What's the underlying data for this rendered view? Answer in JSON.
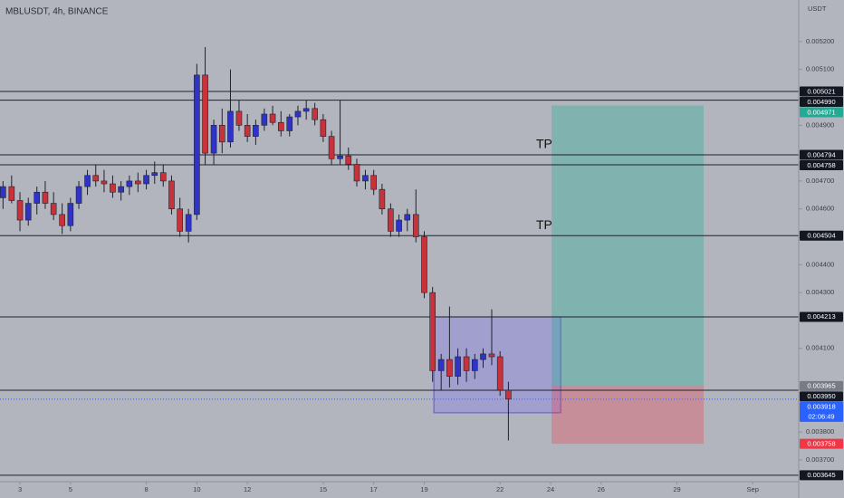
{
  "chart_data": {
    "type": "candlestick",
    "title": "MBLUSDT, 4h, BINANCE",
    "y_axis_label": "USDT",
    "up_color": "#2f33c9",
    "down_color": "#c8323a",
    "x": [
      2.33,
      2.67,
      3,
      3.33,
      3.67,
      4,
      4.33,
      4.67,
      5,
      5.33,
      5.67,
      6,
      6.33,
      6.67,
      7,
      7.33,
      7.67,
      8,
      8.33,
      8.67,
      9,
      9.33,
      9.67,
      10,
      10.33,
      10.67,
      11,
      11.33,
      11.67,
      12,
      12.33,
      12.67,
      13,
      13.33,
      13.67,
      14,
      14.33,
      14.67,
      15,
      15.33,
      15.67,
      16,
      16.33,
      16.67,
      17,
      17.33,
      17.67,
      18,
      18.33,
      18.67,
      19,
      19.33,
      19.67,
      20,
      20.33,
      20.67,
      21,
      21.33,
      21.67,
      22,
      22.33
    ],
    "open": [
      0.00464,
      0.00468,
      0.00463,
      0.00456,
      0.00462,
      0.00466,
      0.00462,
      0.00458,
      0.00454,
      0.00462,
      0.00468,
      0.00472,
      0.0047,
      0.00469,
      0.00466,
      0.00468,
      0.0047,
      0.00469,
      0.00472,
      0.00473,
      0.0047,
      0.0046,
      0.00452,
      0.00458,
      0.00508,
      0.0048,
      0.0049,
      0.00484,
      0.00495,
      0.0049,
      0.00486,
      0.0049,
      0.00494,
      0.00491,
      0.00488,
      0.00493,
      0.00495,
      0.00496,
      0.00492,
      0.00486,
      0.00478,
      0.00479,
      0.00476,
      0.0047,
      0.00472,
      0.00467,
      0.0046,
      0.00452,
      0.00456,
      0.00458,
      0.0045,
      0.0043,
      0.00402,
      0.00406,
      0.004,
      0.00407,
      0.00402,
      0.00406,
      0.00408,
      0.00407,
      0.00395
    ],
    "high": [
      0.0047,
      0.00472,
      0.00466,
      0.00464,
      0.00468,
      0.0047,
      0.00466,
      0.00462,
      0.00464,
      0.0047,
      0.00474,
      0.00476,
      0.00474,
      0.00472,
      0.0047,
      0.00472,
      0.00473,
      0.00474,
      0.00477,
      0.00476,
      0.00472,
      0.00464,
      0.0046,
      0.00512,
      0.00518,
      0.00492,
      0.00496,
      0.0051,
      0.00499,
      0.00494,
      0.00492,
      0.00496,
      0.00497,
      0.00495,
      0.00494,
      0.00497,
      0.00499,
      0.00498,
      0.00494,
      0.00488,
      0.00499,
      0.00482,
      0.00478,
      0.00474,
      0.00474,
      0.00469,
      0.00462,
      0.00458,
      0.0046,
      0.00467,
      0.00452,
      0.00432,
      0.00408,
      0.00425,
      0.0041,
      0.0041,
      0.00408,
      0.0041,
      0.00424,
      0.00409,
      0.00398
    ],
    "low": [
      0.0046,
      0.00462,
      0.00452,
      0.00454,
      0.00458,
      0.0046,
      0.00456,
      0.00451,
      0.00452,
      0.0046,
      0.00465,
      0.00468,
      0.00466,
      0.00464,
      0.00463,
      0.00465,
      0.00466,
      0.00467,
      0.00469,
      0.00468,
      0.00458,
      0.0045,
      0.00448,
      0.00456,
      0.00476,
      0.00476,
      0.0048,
      0.00482,
      0.00488,
      0.00484,
      0.00483,
      0.00488,
      0.0049,
      0.00486,
      0.00486,
      0.0049,
      0.00492,
      0.0049,
      0.00484,
      0.00476,
      0.00476,
      0.00474,
      0.00468,
      0.00467,
      0.00465,
      0.00458,
      0.0045,
      0.0045,
      0.00452,
      0.00448,
      0.00428,
      0.00398,
      0.00395,
      0.00396,
      0.00397,
      0.00398,
      0.00399,
      0.00403,
      0.00404,
      0.00393,
      0.00377
    ],
    "close": [
      0.00468,
      0.00463,
      0.00456,
      0.00462,
      0.00466,
      0.00462,
      0.00458,
      0.00454,
      0.00462,
      0.00468,
      0.00472,
      0.0047,
      0.00469,
      0.00466,
      0.00468,
      0.0047,
      0.00469,
      0.00472,
      0.00473,
      0.0047,
      0.0046,
      0.00452,
      0.00458,
      0.00508,
      0.0048,
      0.0049,
      0.00484,
      0.00495,
      0.0049,
      0.00486,
      0.0049,
      0.00494,
      0.00491,
      0.00488,
      0.00493,
      0.00495,
      0.00496,
      0.00492,
      0.00486,
      0.00478,
      0.00479,
      0.00476,
      0.0047,
      0.00472,
      0.00467,
      0.0046,
      0.00452,
      0.00456,
      0.00458,
      0.0045,
      0.0043,
      0.00402,
      0.00406,
      0.004,
      0.00407,
      0.00402,
      0.00406,
      0.00408,
      0.00407,
      0.00395,
      0.003918
    ],
    "xlim": [
      2.21,
      33.82
    ],
    "ylim": [
      0.003622,
      0.005349
    ],
    "xticks": [
      3,
      5,
      8,
      10,
      12,
      15,
      17,
      19,
      22,
      24,
      26,
      29,
      {
        "value": 32,
        "label": "Sep"
      }
    ],
    "yticks": [
      {
        "value": 0.0052,
        "label": "0.005200"
      },
      {
        "value": 0.0051,
        "label": "0.005100"
      },
      {
        "value": 0.0049,
        "label": "0.004900"
      },
      {
        "value": 0.0047,
        "label": "0.004700"
      },
      {
        "value": 0.0046,
        "label": "0.004600"
      },
      {
        "value": 0.0044,
        "label": "0.004400"
      },
      {
        "value": 0.0043,
        "label": "0.004300"
      },
      {
        "value": 0.0041,
        "label": "0.004100"
      },
      {
        "value": 0.0038,
        "label": "0.003800"
      },
      {
        "value": 0.0037,
        "label": "0.003700"
      }
    ],
    "levels": [
      0.005021,
      {
        "value": 0.00499,
        "label": "0.004990"
      },
      0.004794,
      0.004758,
      0.004504,
      0.004213,
      {
        "value": 0.00395,
        "label": "0.003950"
      },
      0.003645
    ],
    "annotations": [
      {
        "text": "TP",
        "value": 0.004794
      },
      {
        "text": "TP",
        "value": 0.004504
      }
    ],
    "range_box": {
      "top": 0.004213,
      "bottom": 0.003869,
      "x_range": [
        19.38,
        24.4
      ],
      "color": "#8c86e0"
    },
    "position": {
      "target": 0.004971,
      "entry": 0.003965,
      "stop": 0.003758,
      "x_range": [
        24.04,
        30.06
      ],
      "target_color": "#22ab94",
      "stop_color": "#f23645",
      "entry_color": "#787b86"
    },
    "last_price": 0.003918,
    "countdown": "02:06:49",
    "last_price_color": "#2962ff"
  }
}
